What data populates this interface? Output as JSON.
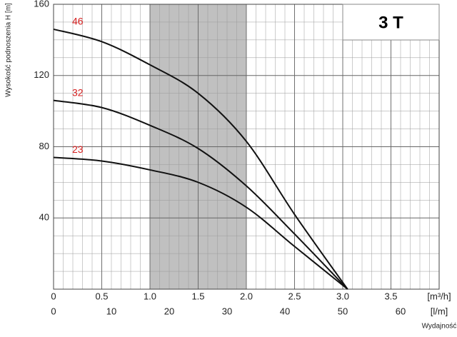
{
  "chart_data": {
    "type": "line",
    "title": "3 T",
    "y_label": "Wysokość podnoszenia H [m]",
    "x_label": "[m³/h]",
    "x2_label": "[l/m]",
    "x_title": "Wydajność",
    "x": [
      0,
      0.5,
      1,
      1.5,
      2,
      2.5,
      3.05
    ],
    "series": [
      {
        "name": "46",
        "color": "#111111",
        "label_color": "#d62020",
        "values": [
          146,
          139,
          126,
          110,
          83,
          42,
          0
        ]
      },
      {
        "name": "32",
        "color": "#111111",
        "label_color": "#d62020",
        "values": [
          106,
          102,
          92,
          79,
          58,
          31,
          0
        ]
      },
      {
        "name": "23",
        "color": "#111111",
        "label_color": "#d62020",
        "values": [
          74,
          72,
          67,
          60,
          46,
          24,
          0
        ]
      }
    ],
    "xlim": [
      0,
      4
    ],
    "ylim": [
      0,
      160
    ],
    "xticks": [
      0,
      0.5,
      {
        "value": 1,
        "label": "1.0"
      },
      1.5,
      {
        "value": 2,
        "label": "2.0"
      },
      2.5,
      {
        "value": 3,
        "label": "3.0"
      },
      3.5
    ],
    "yticks": [
      40,
      80,
      120,
      160
    ],
    "x2lim": [
      0,
      66.67
    ],
    "x2ticks": [
      0,
      10,
      20,
      30,
      40,
      50,
      60
    ],
    "shaded_range": [
      1,
      2
    ],
    "shade_color": "#c0c0c0",
    "grid": true
  }
}
